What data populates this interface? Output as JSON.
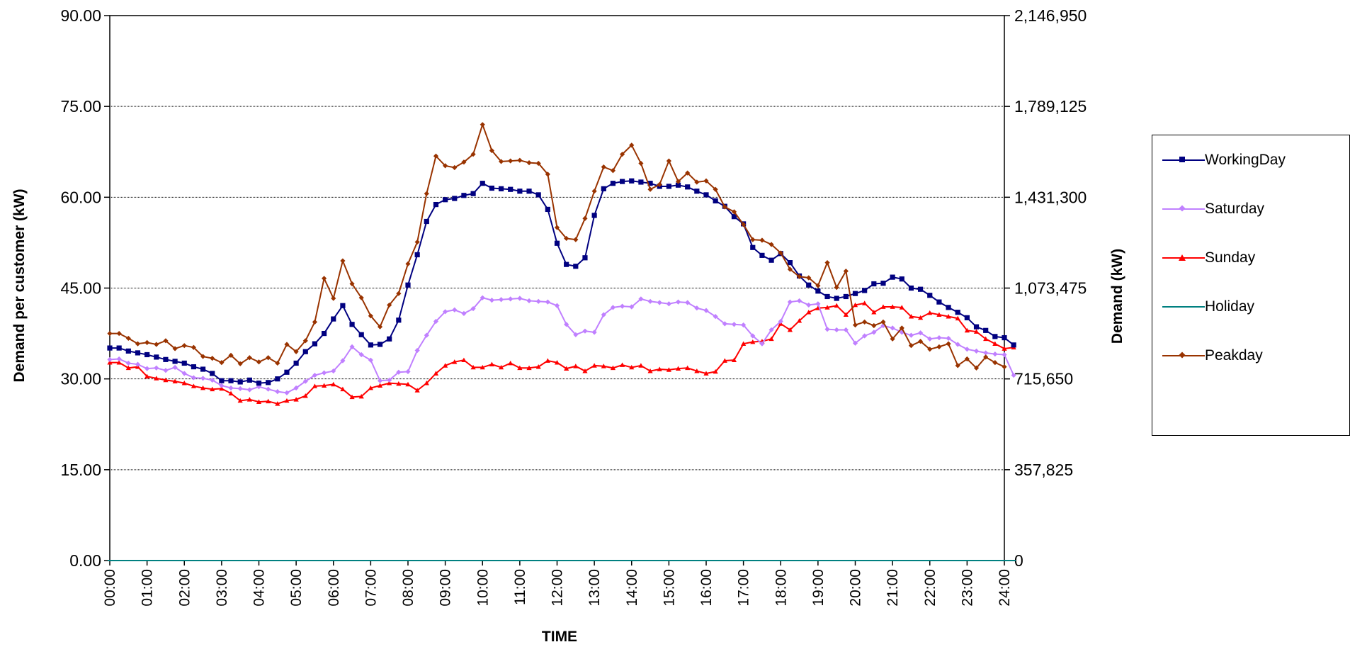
{
  "chart_data": {
    "type": "line",
    "xlabel": "TIME",
    "ylabel_left": "Demand per customer (kW)",
    "ylabel_right": "Demand (kW)",
    "ylim": [
      0,
      90
    ],
    "y2lim": [
      0,
      2146950
    ],
    "yticks": [
      "0.00",
      "15.00",
      "30.00",
      "45.00",
      "60.00",
      "75.00",
      "90.00"
    ],
    "y2ticks": [
      "0",
      "357,825",
      "715,650",
      "1,073,475",
      "1,431,300",
      "1,789,125",
      "2,146,950"
    ],
    "xticks": [
      "00:00",
      "01:00",
      "02:00",
      "03:00",
      "04:00",
      "05:00",
      "06:00",
      "07:00",
      "08:00",
      "09:00",
      "10:00",
      "11:00",
      "12:00",
      "13:00",
      "14:00",
      "15:00",
      "16:00",
      "17:00",
      "18:00",
      "19:00",
      "20:00",
      "21:00",
      "22:00",
      "23:00",
      "24:00"
    ],
    "grid": "horizontal",
    "legend_position": "right",
    "points_per_hour": 4,
    "series": [
      {
        "name": "WorkingDay",
        "color": "#000080",
        "marker": "square",
        "values": [
          35.1,
          35.1,
          34.6,
          34.3,
          34.0,
          33.6,
          33.2,
          32.9,
          32.6,
          32.0,
          31.6,
          30.9,
          29.7,
          29.7,
          29.5,
          29.8,
          29.3,
          29.4,
          30.0,
          31.1,
          32.6,
          34.5,
          35.8,
          37.5,
          39.9,
          42.1,
          39.0,
          37.3,
          35.6,
          35.7,
          36.6,
          39.7,
          45.5,
          50.5,
          56.0,
          58.8,
          59.6,
          59.8,
          60.3,
          60.6,
          62.3,
          61.5,
          61.4,
          61.3,
          61.0,
          61.0,
          60.4,
          58.0,
          52.4,
          48.9,
          48.6,
          50.0,
          57.0,
          61.4,
          62.3,
          62.6,
          62.7,
          62.5,
          62.3,
          61.8,
          61.8,
          62.0,
          61.7,
          61.0,
          60.4,
          59.4,
          58.5,
          56.8,
          55.6,
          51.7,
          50.4,
          49.6,
          50.7,
          49.2,
          47.0,
          45.5,
          44.5,
          43.6,
          43.3,
          43.6,
          44.1,
          44.6,
          45.7,
          45.8,
          46.8,
          46.5,
          45.0,
          44.8,
          43.8,
          42.7,
          41.8,
          41.0,
          40.1,
          38.6,
          38.0,
          37.0,
          36.8,
          35.6
        ]
      },
      {
        "name": "Saturday",
        "color": "#c080ff",
        "marker": "diamond",
        "values": [
          33.2,
          33.3,
          32.6,
          32.4,
          31.7,
          31.8,
          31.4,
          31.9,
          30.9,
          30.2,
          30.1,
          29.8,
          28.9,
          28.5,
          28.4,
          28.2,
          28.7,
          28.3,
          27.9,
          27.7,
          28.5,
          29.6,
          30.6,
          31.0,
          31.3,
          33.0,
          35.3,
          34.0,
          33.1,
          29.7,
          29.8,
          31.1,
          31.2,
          34.7,
          37.2,
          39.5,
          41.1,
          41.4,
          40.8,
          41.6,
          43.4,
          43.0,
          43.1,
          43.2,
          43.3,
          42.9,
          42.8,
          42.7,
          42.1,
          39.0,
          37.3,
          37.9,
          37.7,
          40.6,
          41.8,
          42.0,
          41.9,
          43.2,
          42.8,
          42.6,
          42.4,
          42.7,
          42.6,
          41.7,
          41.3,
          40.3,
          39.1,
          39.0,
          38.9,
          37.1,
          35.8,
          38.1,
          39.5,
          42.7,
          42.9,
          42.2,
          42.4,
          38.2,
          38.1,
          38.1,
          35.9,
          37.1,
          37.7,
          38.8,
          38.4,
          37.7,
          37.2,
          37.6,
          36.6,
          36.8,
          36.7,
          35.7,
          34.9,
          34.6,
          34.3,
          34.1,
          34.0,
          30.6
        ]
      },
      {
        "name": "Sunday",
        "color": "#ff0000",
        "marker": "triangle",
        "values": [
          32.7,
          32.7,
          31.8,
          32.0,
          30.4,
          30.1,
          29.8,
          29.6,
          29.3,
          28.8,
          28.5,
          28.3,
          28.4,
          27.6,
          26.4,
          26.6,
          26.2,
          26.3,
          25.9,
          26.4,
          26.6,
          27.2,
          28.8,
          28.9,
          29.1,
          28.3,
          27.0,
          27.1,
          28.5,
          28.9,
          29.3,
          29.2,
          29.1,
          28.1,
          29.3,
          30.9,
          32.2,
          32.8,
          33.1,
          31.9,
          31.9,
          32.4,
          31.9,
          32.6,
          31.8,
          31.8,
          32.0,
          33.0,
          32.7,
          31.7,
          32.1,
          31.3,
          32.2,
          32.1,
          31.8,
          32.3,
          31.9,
          32.2,
          31.3,
          31.6,
          31.5,
          31.7,
          31.8,
          31.3,
          30.9,
          31.2,
          33.0,
          33.1,
          35.8,
          36.1,
          36.2,
          36.6,
          39.1,
          38.1,
          39.6,
          41.0,
          41.7,
          41.8,
          42.1,
          40.6,
          42.2,
          42.5,
          41.0,
          41.9,
          41.9,
          41.8,
          40.3,
          40.1,
          40.9,
          40.6,
          40.3,
          40.0,
          38.0,
          37.8,
          36.6,
          35.8,
          35.0,
          35.2
        ]
      },
      {
        "name": "Holiday",
        "color": "#008080",
        "marker": "dash",
        "values": [
          0,
          0,
          0,
          0,
          0,
          0,
          0,
          0,
          0,
          0,
          0,
          0,
          0,
          0,
          0,
          0,
          0,
          0,
          0,
          0,
          0,
          0,
          0,
          0,
          0,
          0,
          0,
          0,
          0,
          0,
          0,
          0,
          0,
          0,
          0,
          0,
          0,
          0,
          0,
          0,
          0,
          0,
          0,
          0,
          0,
          0,
          0,
          0,
          0,
          0,
          0,
          0,
          0,
          0,
          0,
          0,
          0,
          0,
          0,
          0,
          0,
          0,
          0,
          0,
          0,
          0,
          0,
          0,
          0,
          0,
          0,
          0,
          0,
          0,
          0,
          0,
          0,
          0,
          0,
          0,
          0,
          0,
          0,
          0,
          0,
          0,
          0,
          0,
          0,
          0,
          0,
          0,
          0,
          0,
          0,
          0,
          0,
          0
        ]
      },
      {
        "name": "Peakday",
        "color": "#993300",
        "marker": "diamond",
        "values": [
          37.5,
          37.5,
          36.7,
          35.8,
          36.0,
          35.7,
          36.3,
          35.0,
          35.5,
          35.2,
          33.7,
          33.4,
          32.7,
          33.9,
          32.5,
          33.5,
          32.8,
          33.5,
          32.6,
          35.7,
          34.5,
          36.3,
          39.4,
          46.6,
          43.3,
          49.5,
          45.7,
          43.4,
          40.4,
          38.6,
          42.2,
          44.1,
          49.0,
          52.6,
          60.6,
          66.8,
          65.2,
          64.9,
          65.8,
          67.1,
          72.0,
          67.7,
          65.9,
          66.0,
          66.1,
          65.7,
          65.6,
          63.8,
          55.0,
          53.2,
          53.0,
          56.5,
          61.0,
          65.0,
          64.4,
          67.1,
          68.6,
          65.6,
          61.3,
          62.1,
          66.0,
          62.6,
          64.0,
          62.5,
          62.7,
          61.3,
          58.4,
          57.6,
          55.5,
          53.0,
          52.9,
          52.2,
          50.8,
          48.1,
          46.9,
          46.7,
          45.4,
          49.2,
          45.1,
          47.8,
          38.9,
          39.4,
          38.8,
          39.4,
          36.6,
          38.4,
          35.5,
          36.2,
          34.9,
          35.3,
          35.8,
          32.2,
          33.3,
          31.8,
          33.6,
          32.7,
          32.0
        ]
      }
    ]
  }
}
